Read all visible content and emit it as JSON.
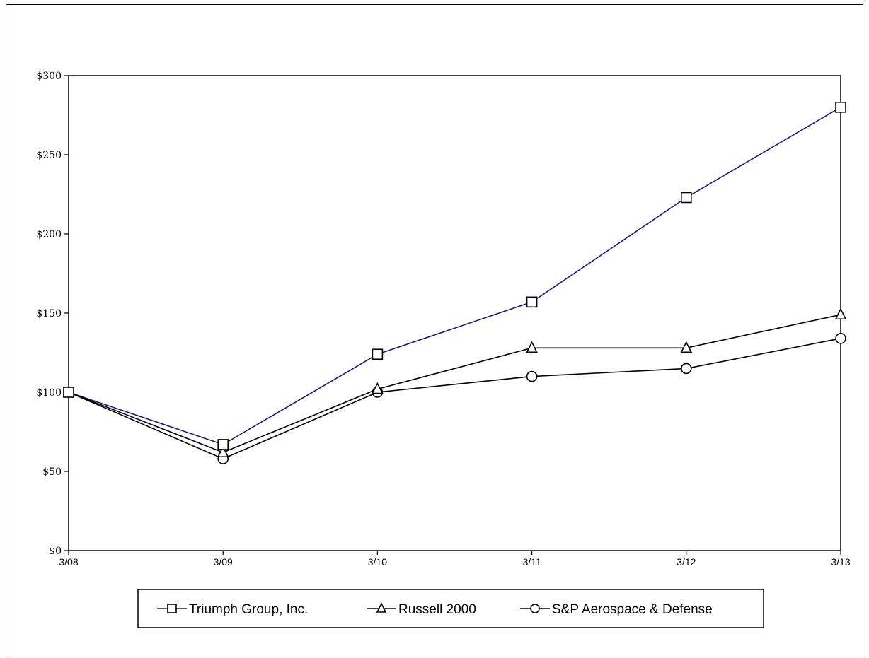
{
  "chart_data": {
    "type": "line",
    "title": "",
    "xlabel": "",
    "ylabel": "",
    "categories": [
      "3/08",
      "3/09",
      "3/10",
      "3/11",
      "3/12",
      "3/13"
    ],
    "y_ticks": [
      "$0",
      "$50",
      "$100",
      "$150",
      "$200",
      "$250",
      "$300"
    ],
    "ylim": [
      0,
      300
    ],
    "grid": false,
    "legend_position": "bottom-center",
    "series": [
      {
        "name": "Triumph Group, Inc.",
        "marker": "square",
        "color": "#1f1a7a",
        "values": [
          100,
          67,
          124,
          157,
          223,
          280
        ]
      },
      {
        "name": "Russell 2000",
        "marker": "triangle",
        "color": "#000000",
        "values": [
          100,
          62,
          102,
          128,
          128,
          149
        ]
      },
      {
        "name": "S&P Aerospace & Defense",
        "marker": "circle",
        "color": "#000000",
        "values": [
          100,
          58,
          100,
          110,
          115,
          134
        ]
      }
    ]
  }
}
